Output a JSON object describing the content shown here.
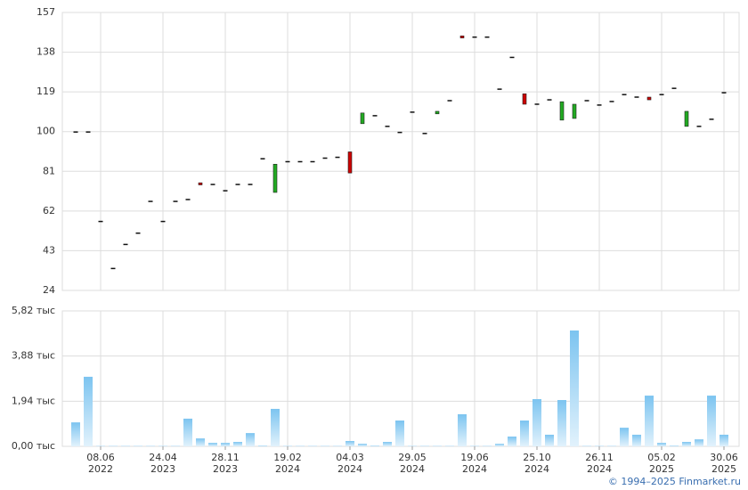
{
  "copyright": "© 1994–2025 Finmarket.ru",
  "chart_data": [
    {
      "type": "candlestick",
      "open": [
        99.8,
        99.8,
        57,
        34.5,
        46,
        51.4,
        66.6,
        57,
        66.6,
        67.5,
        75.5,
        74.7,
        71.7,
        74.7,
        74.7,
        87,
        70.9,
        85.6,
        85.6,
        85.6,
        87.3,
        87.7,
        90.3,
        103.8,
        107.6,
        102.5,
        99.6,
        109.3,
        99.1,
        108.5,
        114.8,
        145.8,
        145.2,
        145.2,
        120.3,
        135.5,
        118.1,
        113.1,
        115.2,
        105.5,
        106.3,
        114.8,
        112.7,
        114.4,
        117.7,
        116.5,
        116.5,
        117.7,
        120.7,
        102.5,
        102.5,
        105.9,
        118.6
      ],
      "close": [
        99.8,
        99.8,
        57,
        34.5,
        46,
        51.4,
        66.6,
        57,
        66.6,
        67.5,
        74.5,
        74.7,
        71.7,
        74.7,
        74.7,
        87,
        84.4,
        85.6,
        85.6,
        85.6,
        87.3,
        87.7,
        80.2,
        108.9,
        107.6,
        102.5,
        99.6,
        109.3,
        99.1,
        109.7,
        114.8,
        144.8,
        145.2,
        145.2,
        120.3,
        135.5,
        113.1,
        113.1,
        115.2,
        114.3,
        113.1,
        114.8,
        112.7,
        114.4,
        117.7,
        116.5,
        115.2,
        117.7,
        120.7,
        109.7,
        102.5,
        105.9,
        118.6
      ],
      "up_color": "#22aa22",
      "down_color": "#cc0000",
      "ylim": [
        24,
        157
      ],
      "yticks": [
        24,
        43,
        62,
        81,
        100,
        119,
        138,
        157
      ],
      "grid": true
    },
    {
      "type": "bar",
      "color": "#7cc4f0",
      "categories": [
        null,
        null,
        "08.06 2022",
        null,
        null,
        null,
        null,
        "24.04 2023",
        null,
        null,
        null,
        null,
        "28.11 2023",
        null,
        null,
        null,
        null,
        "19.02 2024",
        null,
        null,
        null,
        null,
        "04.03 2024",
        null,
        null,
        null,
        null,
        "29.05 2024",
        null,
        null,
        null,
        null,
        "19.06 2024",
        null,
        null,
        null,
        null,
        "25.10 2024",
        null,
        null,
        null,
        null,
        "26.11 2024",
        null,
        null,
        null,
        null,
        "05.02 2025",
        null,
        null,
        null,
        null,
        "30.06 2025"
      ],
      "values": [
        1.03,
        2.99,
        0.02,
        0.02,
        0.02,
        0.02,
        0.02,
        0.02,
        0.02,
        1.19,
        0.34,
        0.15,
        0.15,
        0.19,
        0.57,
        0.03,
        1.61,
        0.02,
        0.02,
        0.02,
        0.02,
        0.02,
        0.23,
        0.11,
        0.03,
        0.19,
        1.11,
        0.02,
        0.02,
        0.02,
        0.02,
        1.38,
        0.02,
        0.02,
        0.11,
        0.42,
        1.11,
        2.03,
        0.5,
        1.99,
        4.98,
        0.02,
        0.02,
        0.02,
        0.8,
        0.5,
        2.18,
        0.15,
        0.03,
        0.19,
        0.3,
        2.18,
        0.5
      ],
      "ylim": [
        0,
        5.82
      ],
      "yticks": [
        {
          "value": 0,
          "label": "0,00 тыс"
        },
        {
          "value": 1.94,
          "label": "1,94 тыс"
        },
        {
          "value": 3.88,
          "label": "3,88 тыс"
        },
        {
          "value": 5.82,
          "label": "5,82 тыс"
        }
      ],
      "grid": true
    }
  ]
}
